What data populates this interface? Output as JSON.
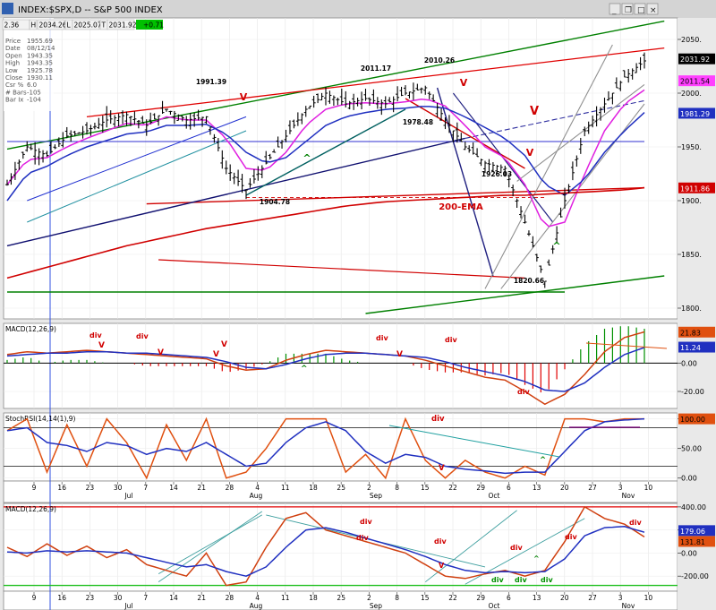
{
  "window": {
    "title": "INDEX:$SPX,D -- S&P 500 INDEX",
    "buttons": [
      "minimize",
      "restore",
      "maximize",
      "close"
    ]
  },
  "quote": {
    "last": "2.36",
    "high": "2034.26",
    "low": "2025.07",
    "close": "2031.92",
    "change": "+0.71",
    "labels": [
      "H",
      "L",
      "T"
    ]
  },
  "info_panel": [
    {
      "label": "Price",
      "value": "1955.69"
    },
    {
      "label": "Date",
      "value": "08/12/14"
    },
    {
      "label": "Open",
      "value": "1943.35"
    },
    {
      "label": "High",
      "value": "1943.35"
    },
    {
      "label": "Low",
      "value": "1925.78"
    },
    {
      "label": "Close",
      "value": "1930.11"
    },
    {
      "label": "Csr %",
      "value": "6.0"
    },
    {
      "label": "# Bars",
      "value": "-105"
    },
    {
      "label": "Bar Ix",
      "value": "-104"
    }
  ],
  "colors": {
    "bull": "#00a000",
    "bear": "#e00000",
    "ema_blue": "#2030c0",
    "ema_magenta": "#e020e0",
    "background": "#ffffff",
    "price_bars": "#000000"
  },
  "chart_data": [
    {
      "type": "line",
      "panel": "price",
      "title": "INDEX:$SPX,D -- S&P 500 INDEX",
      "ylim": [
        1790,
        2070
      ],
      "y_ticks": [
        1800,
        1850,
        1900,
        1950,
        2000,
        2050
      ],
      "y_tick_labels": [
        "1800.",
        "1850.",
        "1900.",
        "1950.",
        "2000.",
        "2050."
      ],
      "x_index": [
        0,
        5,
        10,
        15,
        20,
        25,
        30,
        35,
        40,
        45,
        50,
        55,
        60,
        65,
        70,
        75,
        80,
        85,
        90,
        95,
        100,
        105,
        110,
        115,
        120,
        125,
        130,
        135,
        140,
        145,
        150,
        155,
        160
      ],
      "series": [
        {
          "role": "price",
          "values": [
            1915,
            1950,
            1942,
            1960,
            1965,
            1975,
            1980,
            1970,
            1985,
            1975,
            1978,
            1930,
            1910,
            1935,
            1960,
            1985,
            2000,
            1990,
            1995,
            1990,
            2000,
            2005,
            1975,
            1950,
            1935,
            1930,
            1880,
            1825,
            1900,
            1965,
            1990,
            2015,
            2030
          ]
        },
        {
          "role": "ema_magenta",
          "values": [
            1915,
            1938,
            1940,
            1950,
            1958,
            1965,
            1972,
            1970,
            1978,
            1975,
            1975,
            1958,
            1930,
            1928,
            1945,
            1970,
            1985,
            1990,
            1991,
            1990,
            1992,
            1995,
            1988,
            1970,
            1950,
            1940,
            1915,
            1875,
            1880,
            1925,
            1965,
            1990,
            2003
          ]
        },
        {
          "role": "ema_blue",
          "values": [
            1900,
            1925,
            1932,
            1942,
            1950,
            1956,
            1962,
            1964,
            1970,
            1970,
            1971,
            1962,
            1945,
            1935,
            1940,
            1955,
            1970,
            1978,
            1982,
            1985,
            1986,
            1988,
            1986,
            1978,
            1968,
            1958,
            1942,
            1915,
            1905,
            1920,
            1945,
            1965,
            1982
          ]
        },
        {
          "role": "ema_200",
          "values": [
            1828,
            1833,
            1838,
            1843,
            1848,
            1853,
            1858,
            1862,
            1866,
            1870,
            1874,
            1877,
            1880,
            1883,
            1886,
            1889,
            1892,
            1895,
            1897,
            1899,
            1900,
            1901,
            1902,
            1903,
            1904,
            1905,
            1905,
            1906,
            1907,
            1908,
            1909,
            1910,
            1912
          ]
        }
      ],
      "annotations": [
        "1991.39",
        "2011.17",
        "2010.26",
        "1978.48",
        "1926.03",
        "1904.78",
        "1820.66",
        "200-EMA",
        "V",
        "V",
        "V",
        "V",
        "^",
        "^"
      ],
      "right_labels": [
        {
          "text": "2031.92",
          "color": "#ffffff",
          "bg": "#000000"
        },
        {
          "text": "2011.54",
          "color": "#000000",
          "bg": "#ff40ff"
        },
        {
          "text": "1981.29",
          "color": "#ffffff",
          "bg": "#2030c0"
        },
        {
          "text": "1911.86",
          "color": "#ffffff",
          "bg": "#d00000"
        }
      ]
    },
    {
      "type": "line",
      "panel": "macd1",
      "title": "MACD(12,26,9)",
      "ylim": [
        -32,
        28
      ],
      "y_ticks": [
        -20,
        0
      ],
      "y_tick_labels": [
        "-20.00",
        "0.00"
      ],
      "series": [
        {
          "role": "macd",
          "values": [
            6,
            8,
            7,
            8,
            9,
            8,
            7,
            6,
            5,
            4,
            3,
            -2,
            -5,
            -4,
            2,
            6,
            9,
            8,
            7,
            6,
            5,
            2,
            -2,
            -6,
            -10,
            -12,
            -20,
            -29,
            -22,
            -8,
            8,
            18,
            22
          ]
        },
        {
          "role": "signal",
          "values": [
            5,
            6,
            7,
            7,
            8,
            8,
            7,
            7,
            6,
            5,
            4,
            1,
            -3,
            -4,
            -1,
            3,
            6,
            7,
            7,
            6,
            5,
            4,
            1,
            -3,
            -6,
            -9,
            -13,
            -19,
            -20,
            -14,
            -3,
            6,
            11
          ]
        }
      ],
      "right_labels": [
        {
          "text": "21.83",
          "color": "#000000",
          "bg": "#e05010"
        },
        {
          "text": "11.24",
          "color": "#ffffff",
          "bg": "#2030c0"
        }
      ],
      "annotations": [
        "div",
        "div",
        "V",
        "V",
        "V",
        "V",
        "div",
        "div",
        "V",
        "div",
        "^"
      ]
    },
    {
      "type": "line",
      "panel": "stoch",
      "title": "StochRSI(14,14(1),9)",
      "ylim": [
        -5,
        110
      ],
      "y_ticks": [
        0,
        50,
        100
      ],
      "y_tick_labels": [
        "0.00",
        "50.00",
        "100.00"
      ],
      "series": [
        {
          "role": "stochrsi",
          "values": [
            80,
            100,
            10,
            90,
            20,
            100,
            60,
            0,
            90,
            30,
            100,
            0,
            10,
            50,
            100,
            100,
            100,
            10,
            40,
            0,
            100,
            30,
            0,
            30,
            10,
            0,
            20,
            5,
            100,
            100,
            95,
            100,
            100
          ]
        },
        {
          "role": "signal",
          "values": [
            80,
            85,
            60,
            55,
            45,
            60,
            55,
            40,
            50,
            45,
            60,
            40,
            20,
            25,
            60,
            85,
            95,
            80,
            45,
            25,
            40,
            35,
            20,
            15,
            12,
            8,
            10,
            10,
            45,
            80,
            95,
            98,
            100
          ]
        }
      ],
      "right_labels": [
        {
          "text": "100.00",
          "color": "#000000",
          "bg": "#e05010"
        }
      ],
      "annotations": [
        "div",
        "V",
        "^"
      ]
    },
    {
      "type": "line",
      "panel": "macd2",
      "title": "MACD(12,26,9)",
      "ylim": [
        -330,
        430
      ],
      "y_ticks": [
        -200,
        0,
        200,
        400
      ],
      "y_tick_labels": [
        "-200.00",
        "0.00",
        "200.00",
        "400.00"
      ],
      "series": [
        {
          "role": "macd",
          "values": [
            50,
            -30,
            80,
            -20,
            60,
            -40,
            30,
            -100,
            -150,
            -200,
            0,
            -280,
            -250,
            50,
            300,
            350,
            200,
            150,
            100,
            50,
            0,
            -100,
            -200,
            -220,
            -180,
            -150,
            -200,
            -150,
            100,
            400,
            300,
            250,
            140
          ]
        },
        {
          "role": "signal",
          "values": [
            10,
            0,
            20,
            10,
            20,
            10,
            0,
            -40,
            -80,
            -120,
            -100,
            -160,
            -200,
            -120,
            50,
            200,
            220,
            180,
            130,
            80,
            30,
            -30,
            -100,
            -150,
            -170,
            -160,
            -170,
            -160,
            -50,
            150,
            220,
            230,
            180
          ]
        }
      ],
      "right_labels": [
        {
          "text": "179.06",
          "color": "#ffffff",
          "bg": "#2030c0"
        },
        {
          "text": "131.81",
          "color": "#000000",
          "bg": "#e05010"
        }
      ],
      "annotations": [
        "div",
        "div",
        "div",
        "div",
        "div",
        "div",
        "div",
        "div",
        "div",
        "V",
        "^"
      ]
    }
  ],
  "x_axis": {
    "day_labels": [
      "9",
      "16",
      "23",
      "30",
      "7",
      "14",
      "21",
      "28",
      "4",
      "11",
      "18",
      "25",
      "2",
      "8",
      "15",
      "22",
      "29",
      "6",
      "13",
      "20",
      "27",
      "3",
      "10"
    ],
    "month_labels": [
      "Jul",
      "Aug",
      "Sep",
      "Oct",
      "Nov"
    ]
  }
}
